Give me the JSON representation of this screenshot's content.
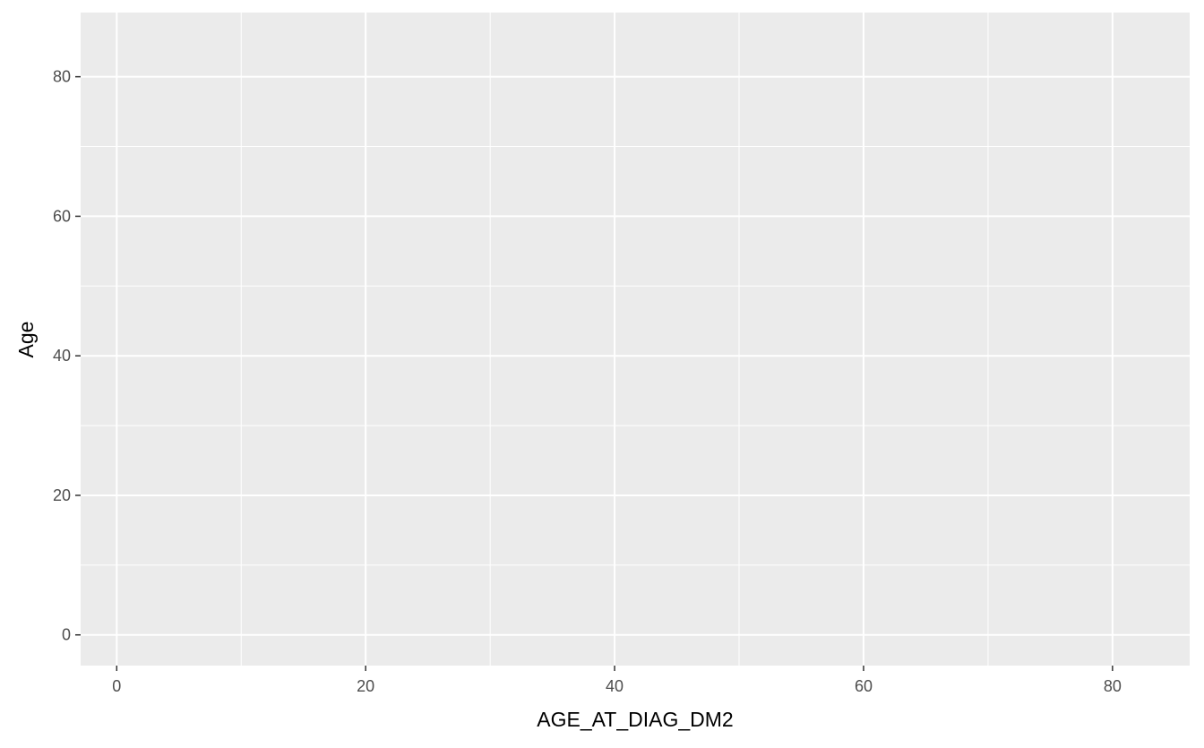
{
  "chart_data": {
    "type": "scatter",
    "title": "",
    "xlabel": "AGE_AT_DIAG_DM2",
    "ylabel": "Age",
    "xlim": [
      -2.9,
      86.2
    ],
    "ylim": [
      -4.4,
      89.2
    ],
    "x_ticks": [
      0,
      20,
      40,
      60,
      80
    ],
    "y_ticks": [
      0,
      20,
      40,
      60,
      80
    ],
    "x_tick_labels": [
      "0",
      "20",
      "40",
      "60",
      "80"
    ],
    "y_tick_labels": [
      "0",
      "20",
      "40",
      "60",
      "80"
    ],
    "grid": true,
    "points": [],
    "colors": {
      "panel": "#EBEBEB",
      "grid": "#FFFFFF",
      "tick_label": "#4D4D4D",
      "axis_title": "#000000"
    }
  }
}
